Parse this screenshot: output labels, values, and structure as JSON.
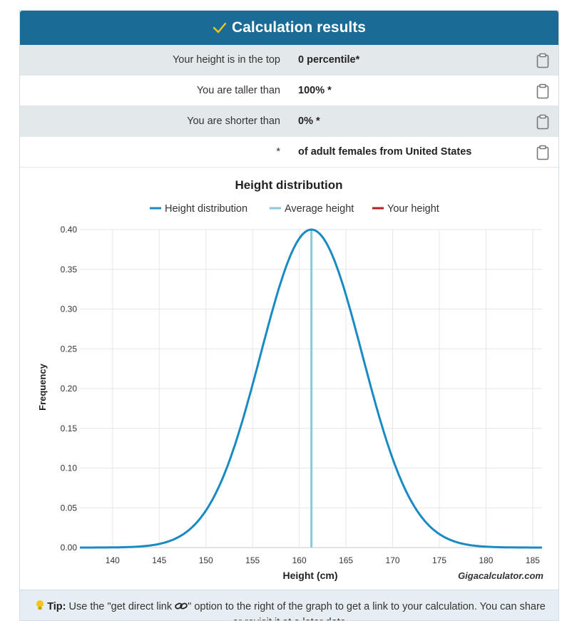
{
  "header": {
    "title": "Calculation results"
  },
  "rows": [
    {
      "label": "Your height is in the top",
      "value": "0 percentile*"
    },
    {
      "label": "You are taller than",
      "value": "100% *"
    },
    {
      "label": "You are shorter than",
      "value": "0% *"
    },
    {
      "label": "*",
      "value": "of adult females from United States"
    }
  ],
  "chart_data": {
    "type": "line",
    "title": "Height distribution",
    "xlabel": "Height (cm)",
    "ylabel": "Frequency",
    "xlim": [
      136.5,
      186
    ],
    "ylim": [
      0,
      0.4
    ],
    "x_ticks": [
      140,
      145,
      150,
      155,
      160,
      165,
      170,
      175,
      180,
      185
    ],
    "y_ticks": [
      "0.00",
      "0.05",
      "0.10",
      "0.15",
      "0.20",
      "0.25",
      "0.30",
      "0.35",
      "0.40"
    ],
    "legend": [
      {
        "name": "Height distribution",
        "color": "#1a8ac4"
      },
      {
        "name": "Average height",
        "color": "#8ec6e0"
      },
      {
        "name": "Your height",
        "color": "#b22222"
      }
    ],
    "series": [
      {
        "name": "Height distribution",
        "distribution": "normal",
        "mean": 161.3,
        "std_dev": 5.45,
        "peak_value": 0.4
      },
      {
        "name": "Average height",
        "x": 161.3
      }
    ],
    "credit": "Gigacalculator.com"
  },
  "tip": {
    "label": "Tip:",
    "text_before": " Use the \"get direct link ",
    "text_after": "\" option to the right of the graph to get a link to your calculation. You can share or revisit it at a later date."
  },
  "colors": {
    "header_bg": "#1b6b97",
    "check": "#f5c518",
    "curve": "#1a8ac4",
    "avg_line": "#8ec6e0",
    "your_height": "#b22222"
  }
}
